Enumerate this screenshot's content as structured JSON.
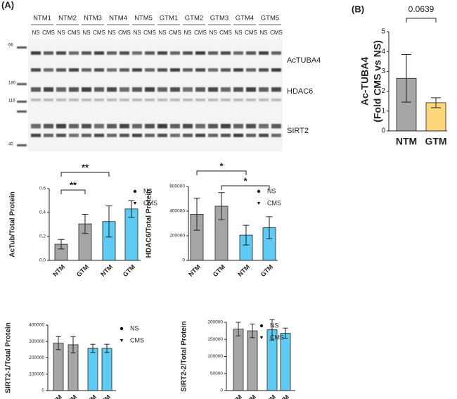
{
  "panels": [
    "(A)",
    "(B)"
  ],
  "blot": {
    "groups": [
      "NTM1",
      "NTM2",
      "NTM3",
      "NTM4",
      "NTM5",
      "GTM1",
      "GTM2",
      "GTM3",
      "GTM4",
      "GTM5"
    ],
    "conditions": [
      "NS",
      "CMS"
    ],
    "proteins": [
      "AcTUBA4",
      "HDAC6",
      "SIRT2"
    ],
    "markers": [
      "66",
      "180",
      "116",
      "40"
    ]
  },
  "chart_data": [
    {
      "type": "bar",
      "ylabel": [
        "Ac-TUBA4",
        "(Fold CMS vs NS)"
      ],
      "categories": [
        "NTM",
        "GTM"
      ],
      "values": [
        2.65,
        1.42
      ],
      "errors": [
        1.2,
        0.25
      ],
      "colors": [
        "#a6a6a6",
        "#fdd77a"
      ],
      "ylim": [
        0,
        5
      ],
      "yticks": [
        0,
        1,
        2,
        3,
        4,
        5
      ],
      "annotations": [
        "0.0639"
      ]
    },
    {
      "type": "bar",
      "ylabel": [
        "AcTub/Total Protein"
      ],
      "categories": [
        "NTM",
        "GTM",
        "NTM",
        "GTM"
      ],
      "values": [
        0.135,
        0.305,
        0.325,
        0.43
      ],
      "errors": [
        0.04,
        0.08,
        0.13,
        0.07
      ],
      "colors": [
        "#a6a6a6",
        "#a6a6a6",
        "#5ecbf5",
        "#5ecbf5"
      ],
      "ylim": [
        0,
        0.6
      ],
      "yticks": [
        {
          "value": 0,
          "label": "0.0"
        },
        0.2,
        0.4,
        0.6
      ],
      "legend": [
        "NS",
        "CMS"
      ],
      "annotations": [
        "**",
        "**"
      ]
    },
    {
      "type": "bar",
      "ylabel": [
        "HDAC6/Total Protein"
      ],
      "categories": [
        "NTM",
        "GTM",
        "NTM",
        "GTM"
      ],
      "values": [
        375000,
        440000,
        205000,
        265000
      ],
      "errors": [
        130000,
        110000,
        80000,
        90000
      ],
      "colors": [
        "#a6a6a6",
        "#a6a6a6",
        "#5ecbf5",
        "#5ecbf5"
      ],
      "ylim": [
        0,
        600000
      ],
      "yticks": [
        0,
        200000,
        400000,
        600000
      ],
      "legend": [
        "NS",
        "CMS"
      ],
      "annotations": [
        "*",
        "*"
      ]
    },
    {
      "type": "bar",
      "ylabel": [
        "SIRT2-1/Total Protein"
      ],
      "categories": [
        "NTM",
        "GTM",
        "NTM",
        "GTM"
      ],
      "values": [
        290000,
        280000,
        258000,
        258000
      ],
      "errors": [
        40000,
        50000,
        25000,
        25000
      ],
      "colors": [
        "#a6a6a6",
        "#a6a6a6",
        "#5ecbf5",
        "#5ecbf5"
      ],
      "ylim": [
        0,
        400000
      ],
      "yticks": [
        0,
        100000,
        200000,
        300000,
        400000
      ],
      "legend": [
        "NS",
        "CMS"
      ]
    },
    {
      "type": "bar",
      "ylabel": [
        "SIRT2-2/Total Protein"
      ],
      "categories": [
        "NTM",
        "GTM",
        "NTM",
        "GTM"
      ],
      "values": [
        180000,
        175000,
        178000,
        168000
      ],
      "errors": [
        20000,
        20000,
        30000,
        15000
      ],
      "colors": [
        "#a6a6a6",
        "#a6a6a6",
        "#5ecbf5",
        "#5ecbf5"
      ],
      "ylim": [
        0,
        200000
      ],
      "yticks": [
        0,
        50000,
        100000,
        150000,
        200000
      ],
      "legend": [
        "NS",
        "CMS"
      ]
    }
  ]
}
